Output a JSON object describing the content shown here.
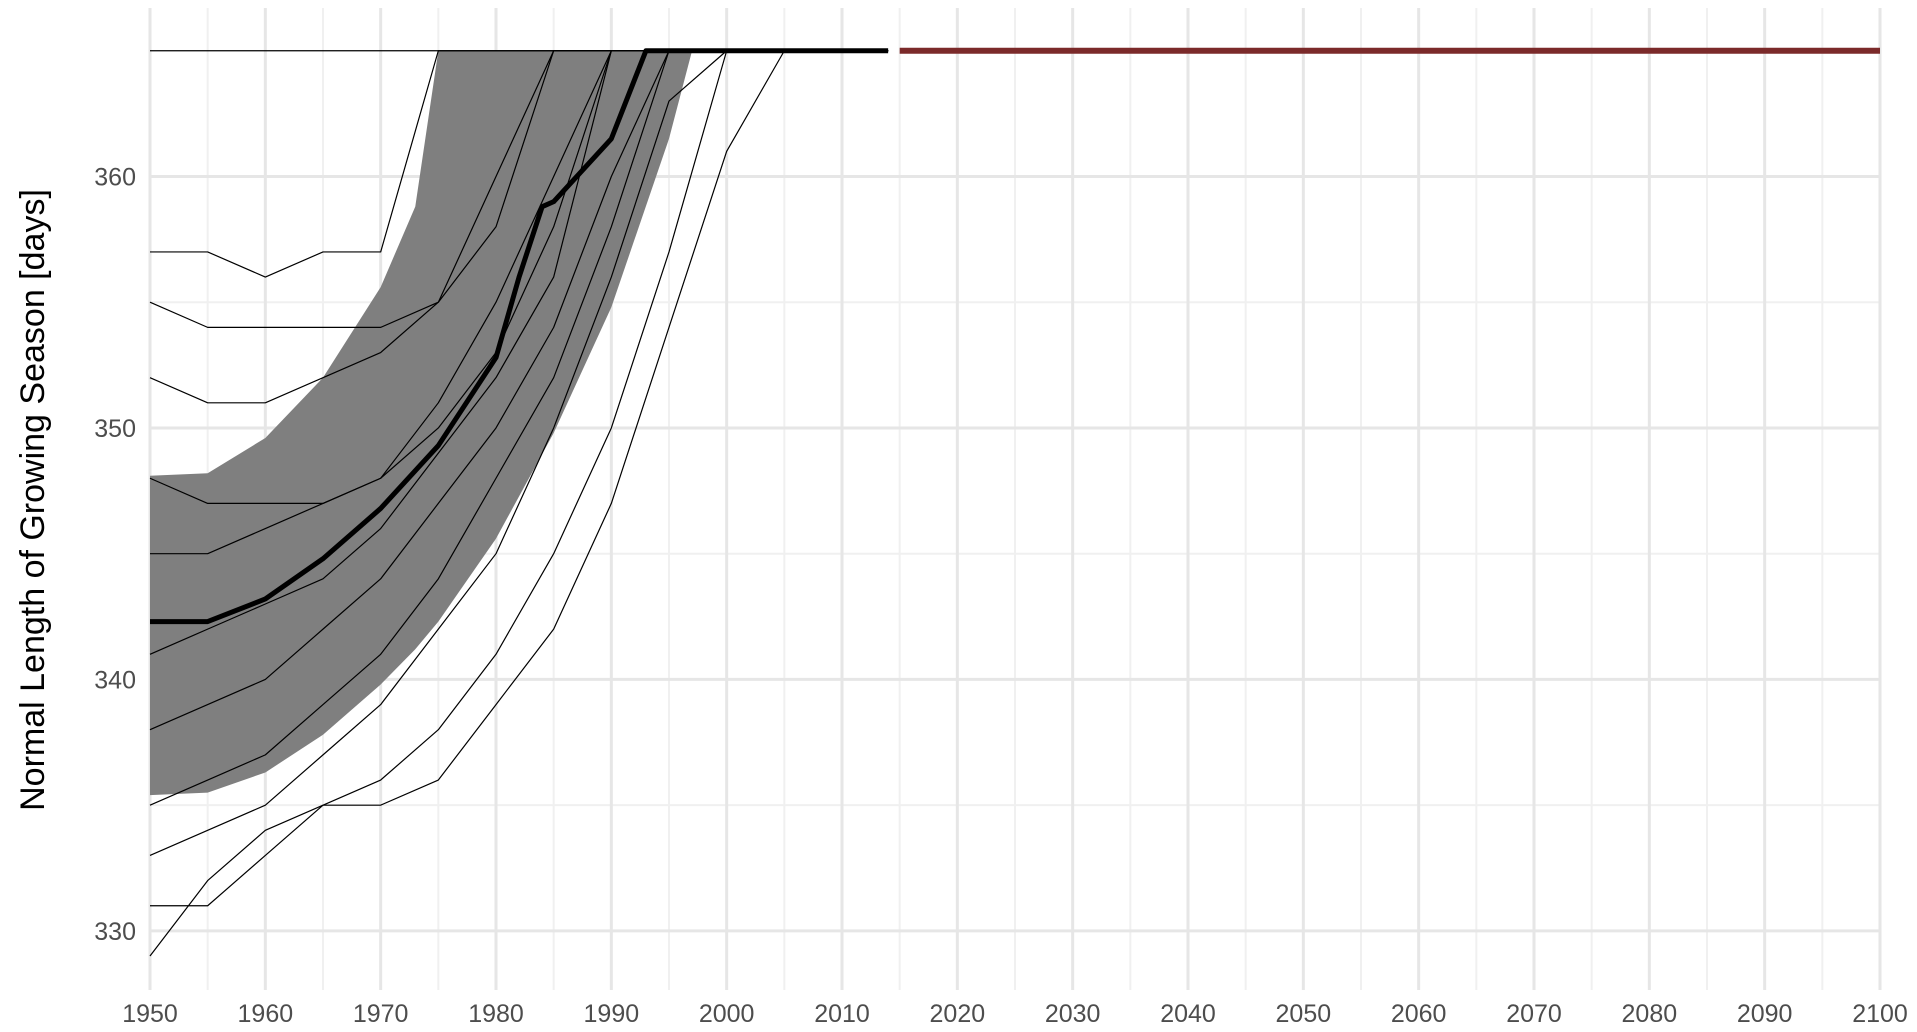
{
  "chart_data": {
    "type": "line",
    "y_label": "Normal Length of Growing Season [days]",
    "xlim": [
      1950,
      2100
    ],
    "xticks": [
      1950,
      1960,
      1970,
      1980,
      1990,
      2000,
      2010,
      2020,
      2030,
      2040,
      2050,
      2060,
      2070,
      2080,
      2090,
      2100
    ],
    "ylim": [
      327.65,
      366.7
    ],
    "yticks": [
      330,
      340,
      350,
      360
    ],
    "grid": true,
    "band": {
      "color": "#7f7f7f",
      "x": [
        1950,
        1955,
        1960,
        1965,
        1970,
        1973,
        1975,
        1980,
        1985,
        1990,
        1995,
        1997
      ],
      "lower": [
        335.4,
        335.5,
        336.3,
        337.8,
        339.8,
        341.2,
        342.3,
        345.6,
        349.8,
        354.8,
        361.5,
        365
      ],
      "upper": [
        348.1,
        348.2,
        349.6,
        352,
        355.6,
        358.8,
        365,
        365,
        365,
        365,
        365,
        365
      ]
    },
    "series": [
      {
        "color": "#000000",
        "width": 1.2,
        "x": [
          1950,
          1955,
          1960,
          1965,
          1970,
          1975,
          1980,
          1985,
          1990,
          1995,
          2000,
          2005,
          2010,
          2014
        ],
        "values": [
          365,
          365,
          365,
          365,
          365,
          365,
          365,
          365,
          365,
          365,
          365,
          365,
          365,
          365
        ]
      },
      {
        "color": "#000000",
        "width": 1.2,
        "x": [
          1950,
          1955,
          1960,
          1965,
          1970,
          1975,
          1980,
          1985,
          1990,
          1995,
          2000,
          2005,
          2010,
          2014
        ],
        "values": [
          357,
          357,
          356,
          357,
          357,
          365,
          365,
          365,
          365,
          365,
          365,
          365,
          365,
          365
        ]
      },
      {
        "color": "#000000",
        "width": 1.2,
        "x": [
          1950,
          1955,
          1960,
          1965,
          1970,
          1975,
          1980,
          1985,
          1990,
          1995,
          2000,
          2005,
          2010,
          2014
        ],
        "values": [
          355,
          354,
          354,
          354,
          354,
          355,
          358,
          365,
          365,
          365,
          365,
          365,
          365,
          365
        ]
      },
      {
        "color": "#000000",
        "width": 1.2,
        "x": [
          1950,
          1955,
          1960,
          1965,
          1970,
          1975,
          1980,
          1985,
          1990,
          1995,
          2000,
          2005,
          2010,
          2014
        ],
        "values": [
          352,
          351,
          351,
          352,
          353,
          355,
          360,
          365,
          365,
          365,
          365,
          365,
          365,
          365
        ]
      },
      {
        "color": "#000000",
        "width": 1.2,
        "x": [
          1950,
          1955,
          1960,
          1965,
          1970,
          1975,
          1980,
          1985,
          1990,
          1995,
          2000,
          2005,
          2010,
          2014
        ],
        "values": [
          348,
          347,
          347,
          347,
          348,
          351,
          355,
          360,
          365,
          365,
          365,
          365,
          365,
          365
        ]
      },
      {
        "color": "#000000",
        "width": 1.2,
        "x": [
          1950,
          1955,
          1960,
          1965,
          1970,
          1975,
          1980,
          1985,
          1990,
          1995,
          2000,
          2005,
          2010,
          2014
        ],
        "values": [
          345,
          345,
          346,
          347,
          348,
          350,
          353,
          358,
          365,
          365,
          365,
          365,
          365,
          365
        ]
      },
      {
        "color": "#000000",
        "width": 1.2,
        "x": [
          1950,
          1955,
          1960,
          1965,
          1970,
          1975,
          1980,
          1985,
          1990,
          1995,
          2000,
          2005,
          2010,
          2014
        ],
        "values": [
          341,
          342,
          343,
          344,
          346,
          349,
          352,
          356,
          365,
          365,
          365,
          365,
          365,
          365
        ]
      },
      {
        "color": "#000000",
        "width": 1.2,
        "x": [
          1950,
          1955,
          1960,
          1965,
          1970,
          1975,
          1980,
          1985,
          1990,
          1995,
          2000,
          2005,
          2010,
          2014
        ],
        "values": [
          338,
          339,
          340,
          342,
          344,
          347,
          350,
          354,
          360,
          365,
          365,
          365,
          365,
          365
        ]
      },
      {
        "color": "#000000",
        "width": 1.2,
        "x": [
          1950,
          1955,
          1960,
          1965,
          1970,
          1975,
          1980,
          1985,
          1990,
          1995,
          2000,
          2005,
          2010,
          2014
        ],
        "values": [
          335,
          336,
          337,
          339,
          341,
          344,
          348,
          352,
          358,
          365,
          365,
          365,
          365,
          365
        ]
      },
      {
        "color": "#000000",
        "width": 1.2,
        "x": [
          1950,
          1955,
          1960,
          1965,
          1970,
          1975,
          1980,
          1985,
          1990,
          1995,
          2000,
          2005,
          2010,
          2014
        ],
        "values": [
          333,
          334,
          335,
          337,
          339,
          342,
          345,
          350,
          356,
          363,
          365,
          365,
          365,
          365
        ]
      },
      {
        "color": "#000000",
        "width": 1.2,
        "x": [
          1950,
          1955,
          1960,
          1965,
          1970,
          1975,
          1980,
          1985,
          1990,
          1995,
          2000,
          2005,
          2010,
          2014
        ],
        "values": [
          331,
          331,
          333,
          335,
          336,
          338,
          341,
          345,
          350,
          357,
          365,
          365,
          365,
          365
        ]
      },
      {
        "color": "#000000",
        "width": 1.2,
        "x": [
          1950,
          1955,
          1960,
          1965,
          1970,
          1975,
          1980,
          1985,
          1990,
          1995,
          2000,
          2005,
          2010,
          2014
        ],
        "values": [
          329,
          332,
          334,
          335,
          335,
          336,
          339,
          342,
          347,
          354,
          361,
          365,
          365,
          365
        ]
      },
      {
        "color": "#000000",
        "width": 5,
        "x": [
          1950,
          1955,
          1960,
          1965,
          1970,
          1975,
          1980,
          1982,
          1984,
          1985,
          1990,
          1993,
          1995,
          2000,
          2005,
          2010,
          2014
        ],
        "values": [
          342.3,
          342.3,
          343.2,
          344.8,
          346.8,
          349.3,
          352.8,
          356,
          358.8,
          359,
          361.5,
          365,
          365,
          365,
          365,
          365,
          365
        ]
      },
      {
        "color": "#7b2a2a",
        "width": 6,
        "x": [
          2015,
          2100
        ],
        "values": [
          365,
          365
        ]
      }
    ]
  }
}
